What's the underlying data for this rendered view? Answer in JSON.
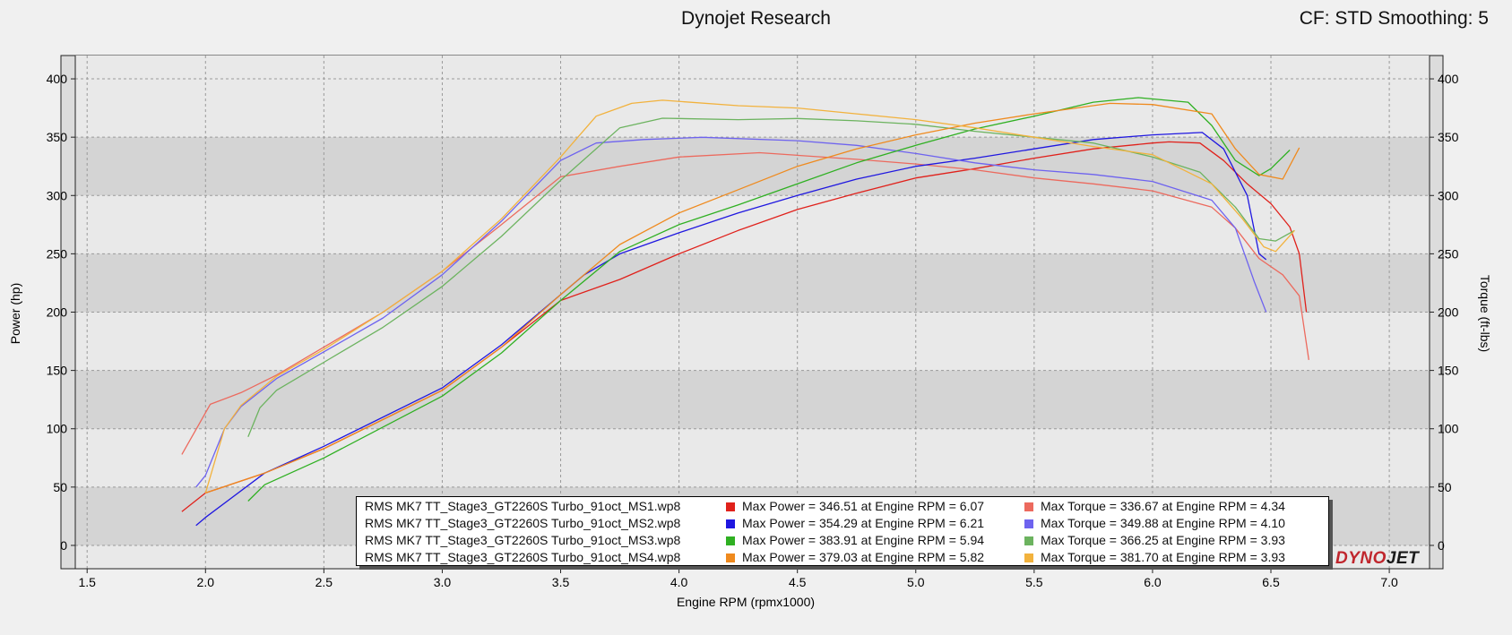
{
  "header": {
    "title": "Dynojet Research",
    "settings": "CF: STD Smoothing: 5"
  },
  "logo": {
    "part1": "DYNO",
    "part2": "JET"
  },
  "legend": [
    {
      "file": "RMS MK7 TT_Stage3_GT2260S Turbo_91oct_MS1.wp8",
      "power_text": "Max Power = 346.51 at Engine RPM = 6.07",
      "torque_text": "Max Torque = 336.67 at Engine RPM = 4.34",
      "power_color": "#e0211b",
      "torque_color": "#ec6a5e"
    },
    {
      "file": "RMS MK7 TT_Stage3_GT2260S Turbo_91oct_MS2.wp8",
      "power_text": "Max Power = 354.29 at Engine RPM = 6.21",
      "torque_text": "Max Torque = 349.88 at Engine RPM = 4.10",
      "power_color": "#1f17e0",
      "torque_color": "#6e63ef"
    },
    {
      "file": "RMS MK7 TT_Stage3_GT2260S Turbo_91oct_MS3.wp8",
      "power_text": "Max Power = 383.91 at Engine RPM = 5.94",
      "torque_text": "Max Torque = 366.25 at Engine RPM = 3.93",
      "power_color": "#2fb022",
      "torque_color": "#6cb35f"
    },
    {
      "file": "RMS MK7 TT_Stage3_GT2260S Turbo_91oct_MS4.wp8",
      "power_text": "Max Power = 379.03 at Engine RPM = 5.82",
      "torque_text": "Max Torque = 381.70 at Engine RPM = 3.93",
      "power_color": "#ef8a1e",
      "torque_color": "#f2b23d"
    }
  ],
  "chart_data": {
    "type": "line",
    "title": "Dynojet Research",
    "xlabel": "Engine RPM (rpmx1000)",
    "ylabel": "Power (hp)",
    "y2label": "Torque (ft-lbs)",
    "xlim": [
      1.45,
      7.17
    ],
    "ylim": [
      -20,
      420
    ],
    "xticks": [
      1.5,
      2.0,
      2.5,
      3.0,
      3.5,
      4.0,
      4.5,
      5.0,
      5.5,
      6.0,
      6.5,
      7.0
    ],
    "yticks": [
      0,
      50,
      100,
      150,
      200,
      250,
      300,
      350,
      400
    ],
    "grid": true,
    "legend_position": "bottom",
    "series": [
      {
        "name": "RMS MK7 TT_Stage3_GT2260S Turbo_91oct_MS1.wp8",
        "measure": "Power",
        "color": "#e0211b",
        "x": [
          1.9,
          2.0,
          2.25,
          2.5,
          3.0,
          3.25,
          3.5,
          3.75,
          4.0,
          4.25,
          4.5,
          4.75,
          5.0,
          5.25,
          5.5,
          5.75,
          6.0,
          6.07,
          6.2,
          6.3,
          6.4,
          6.5,
          6.58,
          6.62,
          6.65
        ],
        "y": [
          29,
          45,
          62,
          83,
          133,
          170,
          210,
          228,
          250,
          270,
          288,
          302,
          315,
          323,
          332,
          340,
          345,
          346,
          345,
          330,
          310,
          293,
          273,
          250,
          200
        ]
      },
      {
        "name": "RMS MK7 TT_Stage3_GT2260S Turbo_91oct_MS1.wp8",
        "measure": "Torque",
        "color": "#ec6a5e",
        "x": [
          1.9,
          1.97,
          2.02,
          2.15,
          2.3,
          2.5,
          2.75,
          3.0,
          3.25,
          3.5,
          3.75,
          4.0,
          4.34,
          4.75,
          5.0,
          5.25,
          5.5,
          5.75,
          6.0,
          6.25,
          6.35,
          6.45,
          6.55,
          6.62,
          6.66
        ],
        "y": [
          78,
          103,
          121,
          131,
          146,
          170,
          200,
          235,
          275,
          316,
          325,
          333,
          336.67,
          331,
          327,
          322,
          315,
          310,
          304,
          290,
          272,
          246,
          232,
          214,
          159
        ]
      },
      {
        "name": "RMS MK7 TT_Stage3_GT2260S Turbo_91oct_MS2.wp8",
        "measure": "Power",
        "color": "#1f17e0",
        "x": [
          1.96,
          2.0,
          2.25,
          2.5,
          3.0,
          3.25,
          3.5,
          3.6,
          3.75,
          4.0,
          4.25,
          4.5,
          4.75,
          5.0,
          5.25,
          5.5,
          5.75,
          6.0,
          6.21,
          6.3,
          6.4,
          6.45,
          6.48
        ],
        "y": [
          17,
          24,
          62,
          85,
          135,
          172,
          215,
          232,
          250,
          268,
          285,
          300,
          314,
          325,
          332,
          340,
          348,
          352,
          354,
          340,
          300,
          250,
          245
        ]
      },
      {
        "name": "RMS MK7 TT_Stage3_GT2260S Turbo_91oct_MS2.wp8",
        "measure": "Torque",
        "color": "#6e63ef",
        "x": [
          1.96,
          2.0,
          2.08,
          2.15,
          2.3,
          2.5,
          2.75,
          3.0,
          3.25,
          3.5,
          3.65,
          3.85,
          4.1,
          4.5,
          4.75,
          5.0,
          5.25,
          5.5,
          5.75,
          6.0,
          6.25,
          6.35,
          6.43,
          6.48
        ],
        "y": [
          50,
          60,
          100,
          119,
          143,
          166,
          195,
          232,
          278,
          330,
          345,
          348,
          349.88,
          347,
          343,
          336,
          328,
          322,
          318,
          312,
          296,
          272,
          226,
          200
        ]
      },
      {
        "name": "RMS MK7 TT_Stage3_GT2260S Turbo_91oct_MS3.wp8",
        "measure": "Power",
        "color": "#2fb022",
        "x": [
          2.18,
          2.25,
          2.5,
          3.0,
          3.25,
          3.5,
          3.75,
          4.0,
          4.25,
          4.5,
          4.75,
          5.0,
          5.25,
          5.5,
          5.75,
          5.94,
          6.15,
          6.25,
          6.35,
          6.45,
          6.5,
          6.58
        ],
        "y": [
          38,
          52,
          75,
          128,
          165,
          210,
          252,
          275,
          292,
          310,
          328,
          343,
          357,
          368,
          380,
          383.91,
          380,
          360,
          330,
          317,
          323,
          339
        ]
      },
      {
        "name": "RMS MK7 TT_Stage3_GT2260S Turbo_91oct_MS3.wp8",
        "measure": "Torque",
        "color": "#6cb35f",
        "x": [
          2.18,
          2.23,
          2.3,
          2.5,
          2.75,
          3.0,
          3.25,
          3.5,
          3.75,
          3.93,
          4.25,
          4.5,
          4.75,
          5.0,
          5.25,
          5.5,
          5.75,
          6.0,
          6.2,
          6.35,
          6.45,
          6.52,
          6.6
        ],
        "y": [
          93,
          118,
          133,
          157,
          187,
          222,
          265,
          313,
          358,
          366.25,
          365,
          366,
          364,
          361,
          355,
          350,
          345,
          333,
          320,
          290,
          263,
          261,
          270
        ]
      },
      {
        "name": "RMS MK7 TT_Stage3_GT2260S Turbo_91oct_MS4.wp8",
        "measure": "Power",
        "color": "#ef8a1e",
        "x": [
          2.0,
          2.25,
          2.5,
          3.0,
          3.25,
          3.5,
          3.75,
          4.0,
          4.25,
          4.5,
          4.75,
          5.0,
          5.25,
          5.5,
          5.82,
          6.0,
          6.25,
          6.35,
          6.45,
          6.55,
          6.62
        ],
        "y": [
          45,
          62,
          83,
          133,
          170,
          215,
          258,
          285,
          305,
          325,
          340,
          352,
          362,
          370,
          379.03,
          378,
          370,
          340,
          318,
          314,
          341
        ]
      },
      {
        "name": "RMS MK7 TT_Stage3_GT2260S Turbo_91oct_MS4.wp8",
        "measure": "Torque",
        "color": "#f2b23d",
        "x": [
          2.0,
          2.08,
          2.15,
          2.3,
          2.5,
          2.75,
          3.0,
          3.25,
          3.5,
          3.65,
          3.8,
          3.93,
          4.25,
          4.5,
          4.75,
          5.0,
          5.25,
          5.5,
          5.75,
          6.0,
          6.25,
          6.38,
          6.47,
          6.52,
          6.6
        ],
        "y": [
          45,
          100,
          120,
          145,
          168,
          200,
          235,
          280,
          333,
          368,
          379,
          381.7,
          377,
          375,
          370,
          365,
          358,
          350,
          342,
          335,
          310,
          280,
          256,
          252,
          270
        ]
      }
    ]
  }
}
